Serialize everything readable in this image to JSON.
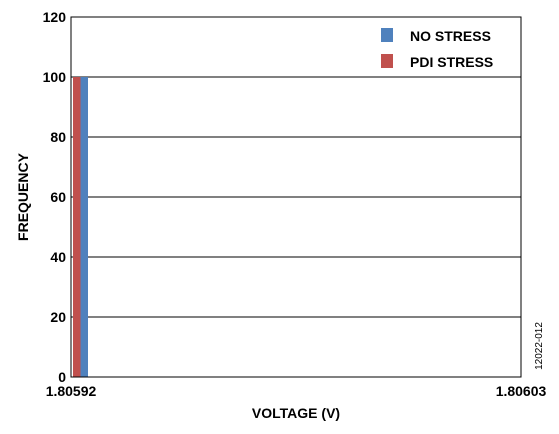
{
  "chart_data": {
    "type": "bar",
    "xlabel": "VOLTAGE (V)",
    "ylabel": "FREQUENCY",
    "ylim": [
      0,
      120
    ],
    "yticks": [
      0,
      20,
      40,
      60,
      80,
      100,
      120
    ],
    "xlim": [
      1.80592,
      1.80603
    ],
    "xtick_labels": [
      "1.80592",
      "1.80603"
    ],
    "grid": "horizontal",
    "legend": "top-right",
    "series": [
      {
        "name": "NO STRESS",
        "color": "#4F81BD",
        "x": [
          1.80592
        ],
        "values": [
          100
        ]
      },
      {
        "name": "PDI STRESS",
        "color": "#C0504D",
        "x": [
          1.80592
        ],
        "values": [
          100
        ]
      }
    ]
  },
  "figure_id": "12022-012"
}
